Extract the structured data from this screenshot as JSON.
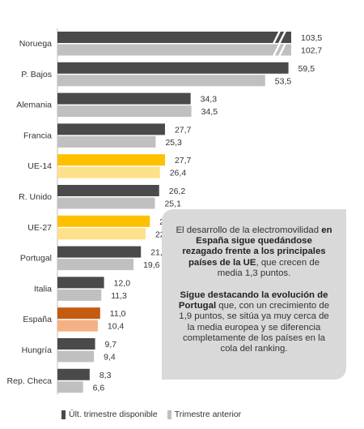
{
  "chart_data": {
    "type": "bar",
    "orientation": "horizontal",
    "categories": [
      "Noruega",
      "P. Bajos",
      "Alemania",
      "Francia",
      "UE-14",
      "R. Unido",
      "UE-27",
      "Portugal",
      "Italia",
      "España",
      "Hungría",
      "Rep. Checa"
    ],
    "series": [
      {
        "name": "Últ. trimestre disponible",
        "values": [
          103.5,
          59.5,
          34.3,
          27.7,
          27.7,
          26.2,
          23.8,
          21.5,
          12.0,
          11.0,
          9.7,
          8.3
        ],
        "labels": [
          "103,5",
          "59,5",
          "34,3",
          "27,7",
          "27,7",
          "26,2",
          "23,8",
          "21,5",
          "12,0",
          "11,0",
          "9,7",
          "8,3"
        ]
      },
      {
        "name": "Trimestre anterior",
        "values": [
          102.7,
          53.5,
          34.5,
          25.3,
          26.4,
          25.1,
          22.7,
          19.6,
          11.3,
          10.4,
          9.4,
          6.6
        ],
        "labels": [
          "102,7",
          "53,5",
          "34,5",
          "25,3",
          "26,4",
          "25,1",
          "22,7",
          "19,6",
          "11,3",
          "10,4",
          "9,4",
          "6,6"
        ]
      }
    ],
    "axis_break": true,
    "grid": false,
    "legend_position": "bottom"
  },
  "colors": {
    "current": "#4a4a4a",
    "previous": "#c0c0c0",
    "eu_current": "#ffc000",
    "eu_previous": "#ffe08a",
    "spain_current": "#c55a11",
    "spain_previous": "#f4b183",
    "callout_bg": "#d9d9d9"
  },
  "callout": {
    "p1_a": "El desarrollo de la electromovilidad ",
    "p1_b": "en España sigue quedándose rezagado frente a los principales países de la UE",
    "p1_c": ", que crecen de media 1,3 puntos.",
    "p2_a": "Sigue destacando la evolución de Portugal",
    "p2_b": " que, con un crecimiento de 1,9 puntos, se sitúa ya muy cerca de la media europea y se diferencia completamente de los países en la cola del ranking."
  },
  "legend": {
    "current": "Últ. trimestre disponible",
    "previous": "Trimestre anterior"
  }
}
